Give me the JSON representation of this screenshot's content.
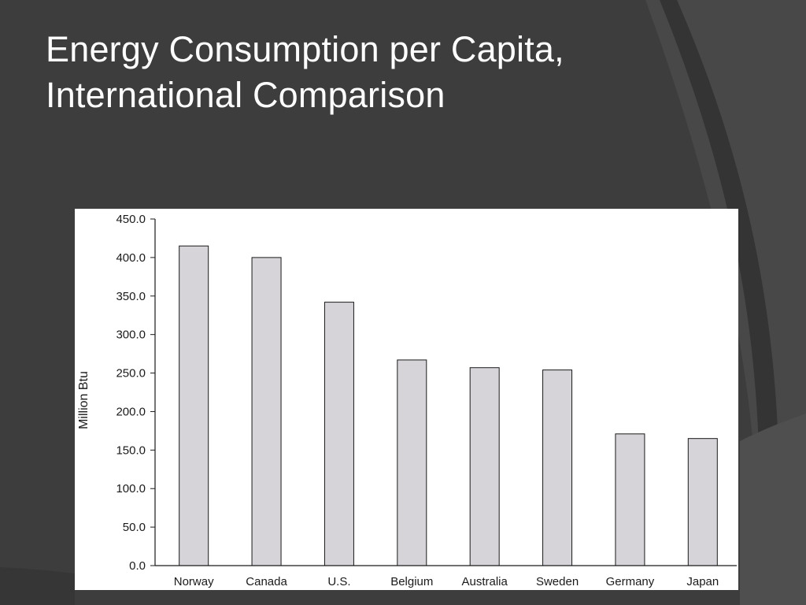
{
  "slide": {
    "title_line1": "Energy Consumption per Capita,",
    "title_line2": "International Comparison"
  },
  "colors": {
    "background": "#3d3d3d",
    "arc_light": "#4a4a4a",
    "arc_dark": "#333333",
    "title": "#ffffff",
    "bar_fill": "#d6d4d8",
    "bar_stroke": "#1a1a1a",
    "axis": "#1a1a1a"
  },
  "chart_data": {
    "type": "bar",
    "title": "",
    "xlabel": "",
    "ylabel": "Million Btu",
    "categories": [
      "Norway",
      "Canada",
      "U.S.",
      "Belgium",
      "Australia",
      "Sweden",
      "Germany",
      "Japan"
    ],
    "values": [
      415,
      400,
      342,
      267,
      257,
      254,
      171,
      165
    ],
    "ylim": [
      0,
      450
    ],
    "yticks": [
      0,
      50,
      100,
      150,
      200,
      250,
      300,
      350,
      400,
      450
    ],
    "ytick_labels": [
      "0.0",
      "50.0",
      "100.0",
      "150.0",
      "200.0",
      "250.0",
      "300.0",
      "350.0",
      "400.0",
      "450.0"
    ],
    "grid": false,
    "legend": "none"
  }
}
